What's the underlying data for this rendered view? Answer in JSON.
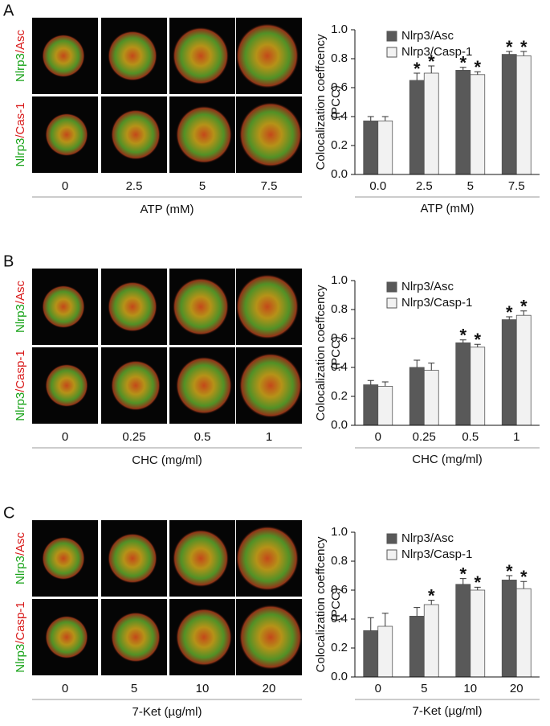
{
  "panels": [
    {
      "letter": "A",
      "image_rows": [
        {
          "green": "Nlrp3",
          "red": "/Asc"
        },
        {
          "green": "Nlrp3",
          "red": "/Cas-1"
        }
      ],
      "image_columns": [
        "0",
        "2.5",
        "5",
        "7.5"
      ],
      "image_xlabel": "ATP (mM)"
    },
    {
      "letter": "B",
      "image_rows": [
        {
          "green": "Nlrp3",
          "red": "/Asc"
        },
        {
          "green": "Nlrp3",
          "red": "/Casp-1"
        }
      ],
      "image_columns": [
        "0",
        "0.25",
        "0.5",
        "1"
      ],
      "image_xlabel": "CHC (mg/ml)"
    },
    {
      "letter": "C",
      "image_rows": [
        {
          "green": "Nlrp3",
          "red": "/Asc"
        },
        {
          "green": "Nlrp3",
          "red": "/Casp-1"
        }
      ],
      "image_columns": [
        "0",
        "5",
        "10",
        "20"
      ],
      "image_xlabel": "7-Ket (µg/ml)"
    }
  ],
  "chart_data": [
    {
      "type": "bar",
      "ylabel": [
        "Colocalization coeffcency",
        "(PCC)"
      ],
      "xlabel": "ATP (mM)",
      "categories": [
        "0.0",
        "2.5",
        "5",
        "7.5"
      ],
      "ylim": [
        0,
        1
      ],
      "yticks": [
        {
          "value": 0,
          "label": "0.0"
        },
        0.2,
        0.4,
        0.6,
        0.8,
        {
          "value": 1,
          "label": "1.0"
        }
      ],
      "legend": "upper left",
      "series": [
        {
          "name": "Nlrp3/Asc",
          "color": "#595959",
          "values": [
            0.37,
            0.65,
            0.72,
            0.83
          ],
          "errors": [
            0.03,
            0.05,
            0.02,
            0.02
          ],
          "annotations": [
            null,
            "*",
            "*",
            "*"
          ]
        },
        {
          "name": "Nlrp3/Casp-1",
          "color": "#f2f2f2",
          "values": [
            0.37,
            0.7,
            0.69,
            0.82
          ],
          "errors": [
            0.03,
            0.05,
            0.02,
            0.03
          ],
          "annotations": [
            null,
            "*",
            "*",
            "*"
          ]
        }
      ]
    },
    {
      "type": "bar",
      "ylabel": [
        "Colocalization coeffcency",
        "(PCC)"
      ],
      "xlabel": "CHC (mg/ml)",
      "categories": [
        "0",
        "0.25",
        "0.5",
        "1"
      ],
      "ylim": [
        0,
        1
      ],
      "yticks": [
        {
          "value": 0,
          "label": "0.0"
        },
        0.2,
        0.4,
        0.6,
        0.8,
        {
          "value": 1,
          "label": "1.0"
        }
      ],
      "legend": "upper left",
      "series": [
        {
          "name": "Nlrp3/Asc",
          "color": "#595959",
          "values": [
            0.28,
            0.4,
            0.57,
            0.73
          ],
          "errors": [
            0.03,
            0.05,
            0.02,
            0.02
          ],
          "annotations": [
            null,
            null,
            "*",
            "*"
          ]
        },
        {
          "name": "Nlrp3/Casp-1",
          "color": "#f2f2f2",
          "values": [
            0.27,
            0.38,
            0.54,
            0.76
          ],
          "errors": [
            0.03,
            0.05,
            0.02,
            0.03
          ],
          "annotations": [
            null,
            null,
            "*",
            "*"
          ]
        }
      ]
    },
    {
      "type": "bar",
      "ylabel": [
        "Colocalization coeffcency",
        "(PCC)"
      ],
      "xlabel": "7-Ket (µg/ml)",
      "categories": [
        "0",
        "5",
        "10",
        "20"
      ],
      "ylim": [
        0,
        1
      ],
      "yticks": [
        {
          "value": 0,
          "label": "0.0"
        },
        0.2,
        0.4,
        0.6,
        0.8,
        {
          "value": 1,
          "label": "1.0"
        }
      ],
      "legend": "upper left",
      "series": [
        {
          "name": "Nlrp3/Asc",
          "color": "#595959",
          "values": [
            0.32,
            0.42,
            0.64,
            0.67
          ],
          "errors": [
            0.09,
            0.06,
            0.04,
            0.03
          ],
          "annotations": [
            null,
            null,
            "*",
            "*"
          ]
        },
        {
          "name": "Nlrp3/Casp-1",
          "color": "#f2f2f2",
          "values": [
            0.35,
            0.5,
            0.6,
            0.61
          ],
          "errors": [
            0.09,
            0.03,
            0.02,
            0.05
          ],
          "annotations": [
            null,
            "*",
            "*",
            "*"
          ]
        }
      ]
    }
  ]
}
